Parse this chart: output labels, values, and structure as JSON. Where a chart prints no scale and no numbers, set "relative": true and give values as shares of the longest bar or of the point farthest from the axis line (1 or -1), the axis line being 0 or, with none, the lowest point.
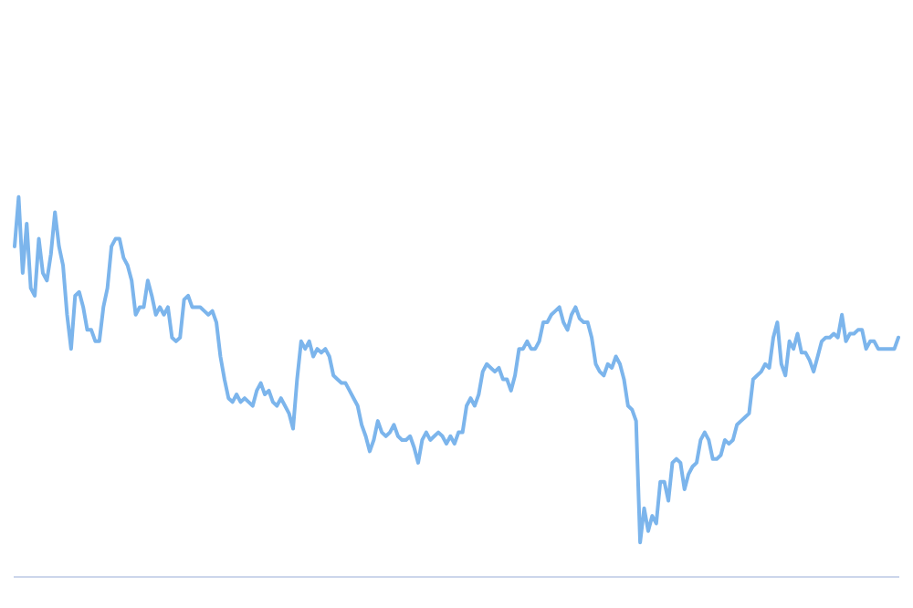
{
  "chart_data": {
    "type": "line",
    "relative": true,
    "marker": "none",
    "line_style": "solid",
    "categories": [
      null,
      null,
      null,
      null,
      null,
      null,
      null,
      null,
      null,
      null,
      null,
      null,
      null,
      null,
      null,
      null,
      null,
      null,
      null,
      null,
      null,
      null,
      null,
      null,
      null,
      null,
      null,
      null,
      null,
      null,
      null,
      null,
      null,
      null,
      null,
      null,
      null,
      null,
      null,
      null,
      null,
      null,
      null,
      null,
      null,
      null,
      null,
      null,
      null,
      null,
      null,
      null,
      null,
      null,
      null,
      null,
      null,
      null,
      null,
      null,
      null,
      null,
      null,
      null,
      null,
      null,
      null,
      null,
      null,
      null,
      null,
      null,
      null,
      null,
      null,
      null,
      null,
      null,
      null,
      null,
      null,
      null,
      null,
      null,
      null,
      null,
      null,
      null,
      null,
      null,
      null,
      null,
      null,
      null,
      null,
      null,
      null,
      null,
      null,
      null,
      null,
      null,
      null,
      null,
      null,
      null,
      null,
      null,
      null,
      null,
      null,
      null,
      null,
      null,
      null,
      null,
      null,
      null,
      null,
      null,
      null,
      null,
      null,
      null,
      null,
      null,
      null,
      null,
      null,
      null,
      null,
      null,
      null,
      null,
      null,
      null,
      null,
      null,
      null,
      null,
      null,
      null,
      null,
      null,
      null,
      null,
      null,
      null,
      null,
      null,
      null,
      null,
      null,
      null,
      null,
      null,
      null,
      null,
      null,
      null,
      null,
      null,
      null,
      null,
      null,
      null,
      null,
      null,
      null,
      null,
      null,
      null,
      null,
      null,
      null,
      null,
      null,
      null,
      null,
      null,
      null,
      null,
      null,
      null,
      null,
      null,
      null,
      null,
      null,
      null,
      null,
      null,
      null,
      null,
      null,
      null,
      null,
      null,
      null,
      null,
      null,
      null,
      null,
      null,
      null,
      null,
      null,
      null,
      null,
      null,
      null,
      null,
      null,
      null,
      null,
      null,
      null,
      null,
      null,
      null
    ],
    "series": [
      {
        "color": "#7cb5ec",
        "values": [
          0.87,
          1,
          0.8,
          0.93,
          0.76,
          0.74,
          0.89,
          0.8,
          0.78,
          0.85,
          0.96,
          0.87,
          0.82,
          0.69,
          0.6,
          0.74,
          0.75,
          0.71,
          0.65,
          0.65,
          0.62,
          0.62,
          0.71,
          0.76,
          0.87,
          0.89,
          0.89,
          0.84,
          0.82,
          0.78,
          0.69,
          0.71,
          0.71,
          0.78,
          0.74,
          0.69,
          0.71,
          0.69,
          0.71,
          0.63,
          0.62,
          0.63,
          0.73,
          0.74,
          0.71,
          0.71,
          0.71,
          0.7,
          0.69,
          0.7,
          0.67,
          0.58,
          0.52,
          0.47,
          0.46,
          0.48,
          0.46,
          0.47,
          0.46,
          0.45,
          0.49,
          0.51,
          0.48,
          0.49,
          0.46,
          0.45,
          0.47,
          0.45,
          0.43,
          0.39,
          0.52,
          0.62,
          0.6,
          0.62,
          0.58,
          0.6,
          0.59,
          0.6,
          0.58,
          0.53,
          0.52,
          0.51,
          0.51,
          0.49,
          0.47,
          0.45,
          0.4,
          0.37,
          0.33,
          0.36,
          0.41,
          0.38,
          0.37,
          0.38,
          0.4,
          0.37,
          0.36,
          0.36,
          0.37,
          0.34,
          0.3,
          0.36,
          0.38,
          0.36,
          0.37,
          0.38,
          0.37,
          0.35,
          0.37,
          0.35,
          0.38,
          0.38,
          0.45,
          0.47,
          0.45,
          0.48,
          0.54,
          0.56,
          0.55,
          0.54,
          0.55,
          0.52,
          0.52,
          0.49,
          0.53,
          0.6,
          0.6,
          0.62,
          0.6,
          0.6,
          0.62,
          0.67,
          0.67,
          0.69,
          0.7,
          0.71,
          0.67,
          0.65,
          0.69,
          0.71,
          0.68,
          0.67,
          0.67,
          0.63,
          0.56,
          0.54,
          0.53,
          0.56,
          0.55,
          0.58,
          0.56,
          0.52,
          0.45,
          0.44,
          0.41,
          0.09,
          0.18,
          0.12,
          0.16,
          0.14,
          0.25,
          0.25,
          0.2,
          0.3,
          0.31,
          0.3,
          0.23,
          0.27,
          0.29,
          0.3,
          0.36,
          0.38,
          0.36,
          0.31,
          0.31,
          0.32,
          0.36,
          0.35,
          0.36,
          0.4,
          0.41,
          0.42,
          0.43,
          0.52,
          0.53,
          0.54,
          0.56,
          0.55,
          0.63,
          0.67,
          0.56,
          0.53,
          0.62,
          0.6,
          0.64,
          0.59,
          0.59,
          0.57,
          0.54,
          0.58,
          0.62,
          0.63,
          0.63,
          0.64,
          0.63,
          0.69,
          0.62,
          0.64,
          0.64,
          0.65,
          0.65,
          0.6,
          0.62,
          0.62,
          0.6,
          0.6,
          0.6,
          0.6,
          0.6,
          0.63
        ]
      }
    ]
  }
}
